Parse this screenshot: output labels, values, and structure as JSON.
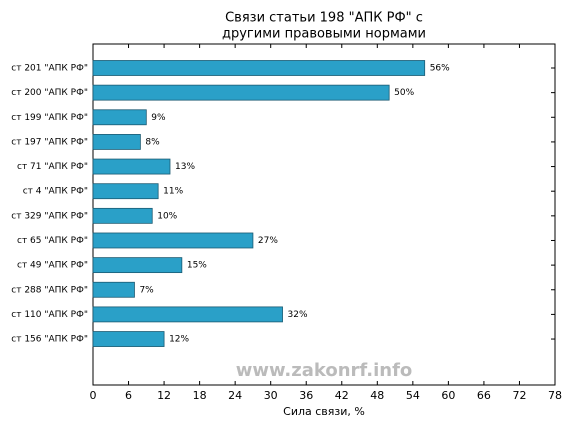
{
  "chart_data": {
    "type": "barh",
    "title": [
      "Связи статьи 198 \"АПК РФ\" с",
      "другими правовыми нормами"
    ],
    "xlabel": "Сила связи, %",
    "watermark": "www.zakonrf.info",
    "categories": [
      "ст 201 \"АПК РФ\"",
      "ст 200 \"АПК РФ\"",
      "ст 199 \"АПК РФ\"",
      "ст 197 \"АПК РФ\"",
      "ст 71 \"АПК РФ\"",
      "ст 4 \"АПК РФ\"",
      "ст 329 \"АПК РФ\"",
      "ст 65 \"АПК РФ\"",
      "ст 49 \"АПК РФ\"",
      "ст 288 \"АПК РФ\"",
      "ст 110 \"АПК РФ\"",
      "ст 156 \"АПК РФ\""
    ],
    "values": [
      56,
      50,
      9,
      8,
      13,
      11,
      10,
      27,
      15,
      7,
      32,
      12
    ],
    "value_labels": [
      "56%",
      "50%",
      "9%",
      "8%",
      "13%",
      "11%",
      "10%",
      "27%",
      "15%",
      "7%",
      "32%",
      "12%"
    ],
    "color": "#2aa0c8",
    "xlim": [
      0,
      78
    ],
    "xticks": [
      0,
      6,
      12,
      18,
      24,
      30,
      36,
      42,
      48,
      54,
      60,
      66,
      72,
      78
    ]
  }
}
